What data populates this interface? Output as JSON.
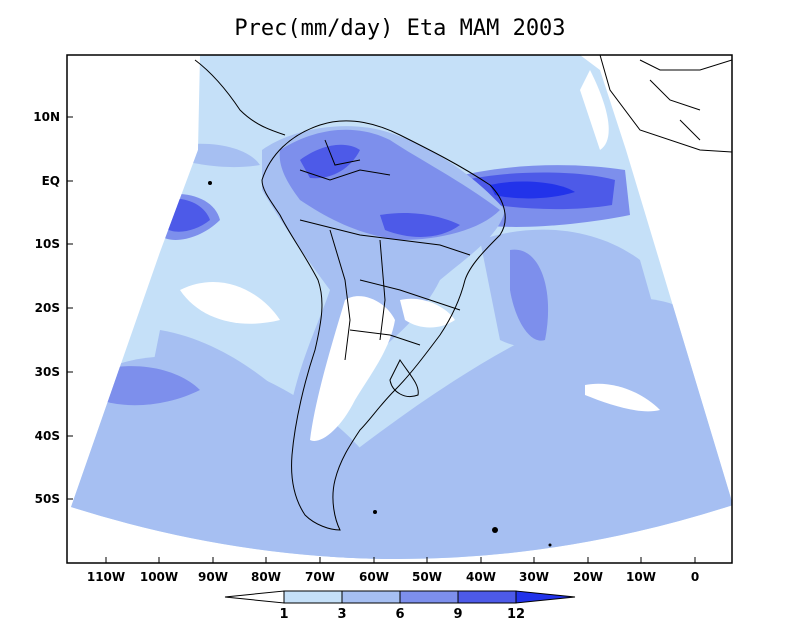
{
  "title": "Prec(mm/day) Eta MAM 2003",
  "lat_ticks": [
    "10N",
    "EQ",
    "10S",
    "20S",
    "30S",
    "40S",
    "50S"
  ],
  "lon_ticks": [
    "110W",
    "100W",
    "90W",
    "80W",
    "70W",
    "60W",
    "50W",
    "40W",
    "30W",
    "20W",
    "10W",
    "0"
  ],
  "colorbar": {
    "levels": [
      "1",
      "3",
      "6",
      "9",
      "12"
    ],
    "colors": [
      "#ffffff",
      "#c5e0f8",
      "#a6bff2",
      "#7d8fec",
      "#4d5ae8",
      "#2233ea"
    ]
  },
  "colors": {
    "lowest": "#ffffff",
    "light": "#c5e0f8",
    "medium": "#a6bff2",
    "high": "#7d8fec",
    "very_high": "#4d5ae8",
    "extreme": "#2233ea",
    "coastline": "#000000"
  }
}
